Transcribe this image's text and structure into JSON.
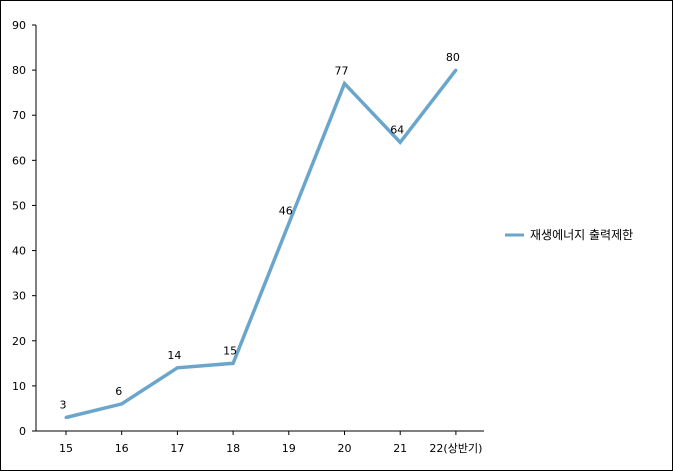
{
  "chart_data": {
    "type": "line",
    "title": "",
    "xlabel": "",
    "ylabel": "",
    "categories": [
      "15",
      "16",
      "17",
      "18",
      "19",
      "20",
      "21",
      "22(상반기)"
    ],
    "series": [
      {
        "name": "재생에너지  출력제한",
        "values": [
          3,
          6,
          14,
          15,
          46,
          77,
          64,
          80
        ],
        "color": "#6aa6cc"
      }
    ],
    "ylim": [
      0,
      90
    ],
    "yticks": [
      "0",
      "10",
      "20",
      "30",
      "40",
      "50",
      "60",
      "70",
      "80",
      "90"
    ],
    "data_labels": [
      "3",
      "6",
      "14",
      "15",
      "46",
      "77",
      "64",
      "80"
    ],
    "grid": false,
    "legend_position": "right"
  }
}
